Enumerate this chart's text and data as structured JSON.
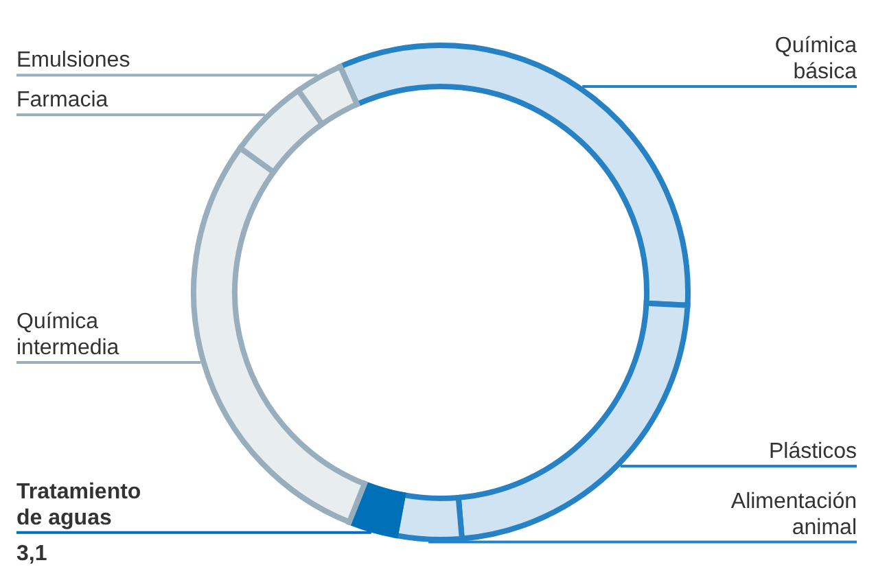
{
  "chart_data": {
    "type": "donut",
    "categories": [
      "Química básica",
      "Plásticos",
      "Alimentación animal",
      "Tratamiento de aguas",
      "Química intermedia",
      "Farmacia",
      "Emulsiones"
    ],
    "values": [
      32.5,
      22.8,
      4.3,
      3.1,
      28.9,
      5.3,
      3.1
    ],
    "colors": [
      "#cfe3f2",
      "#cfe3f2",
      "#cfe3f2",
      "#0071b9",
      "#e8edf0",
      "#e8edf0",
      "#e8edf0"
    ],
    "value_labels": [
      null,
      null,
      null,
      "3,1",
      null,
      null,
      null
    ]
  }
}
